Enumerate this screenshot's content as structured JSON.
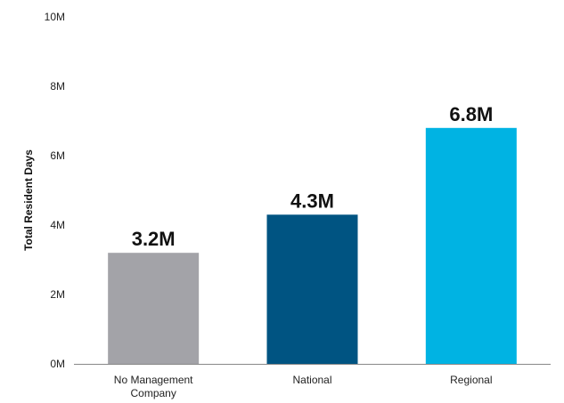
{
  "chart_data": {
    "type": "bar",
    "categories": [
      "No Management Company",
      "National",
      "Regional"
    ],
    "category_lines": [
      [
        "No Management",
        "Company"
      ],
      [
        "National"
      ],
      [
        "Regional"
      ]
    ],
    "values": [
      3.2,
      4.3,
      6.8
    ],
    "value_unit": "M",
    "data_labels": [
      "3.2M",
      "4.3M",
      "6.8M"
    ],
    "colors": [
      "#a3a3a8",
      "#005482",
      "#00b3e3"
    ],
    "title": "",
    "xlabel": "",
    "ylabel": "Total Resident Days",
    "ylim": [
      0,
      10
    ],
    "yticks": [
      0,
      2,
      4,
      6,
      8,
      10
    ],
    "ytick_labels": [
      "0M",
      "2M",
      "4M",
      "6M",
      "8M",
      "10M"
    ],
    "grid": false,
    "legend": "none"
  }
}
